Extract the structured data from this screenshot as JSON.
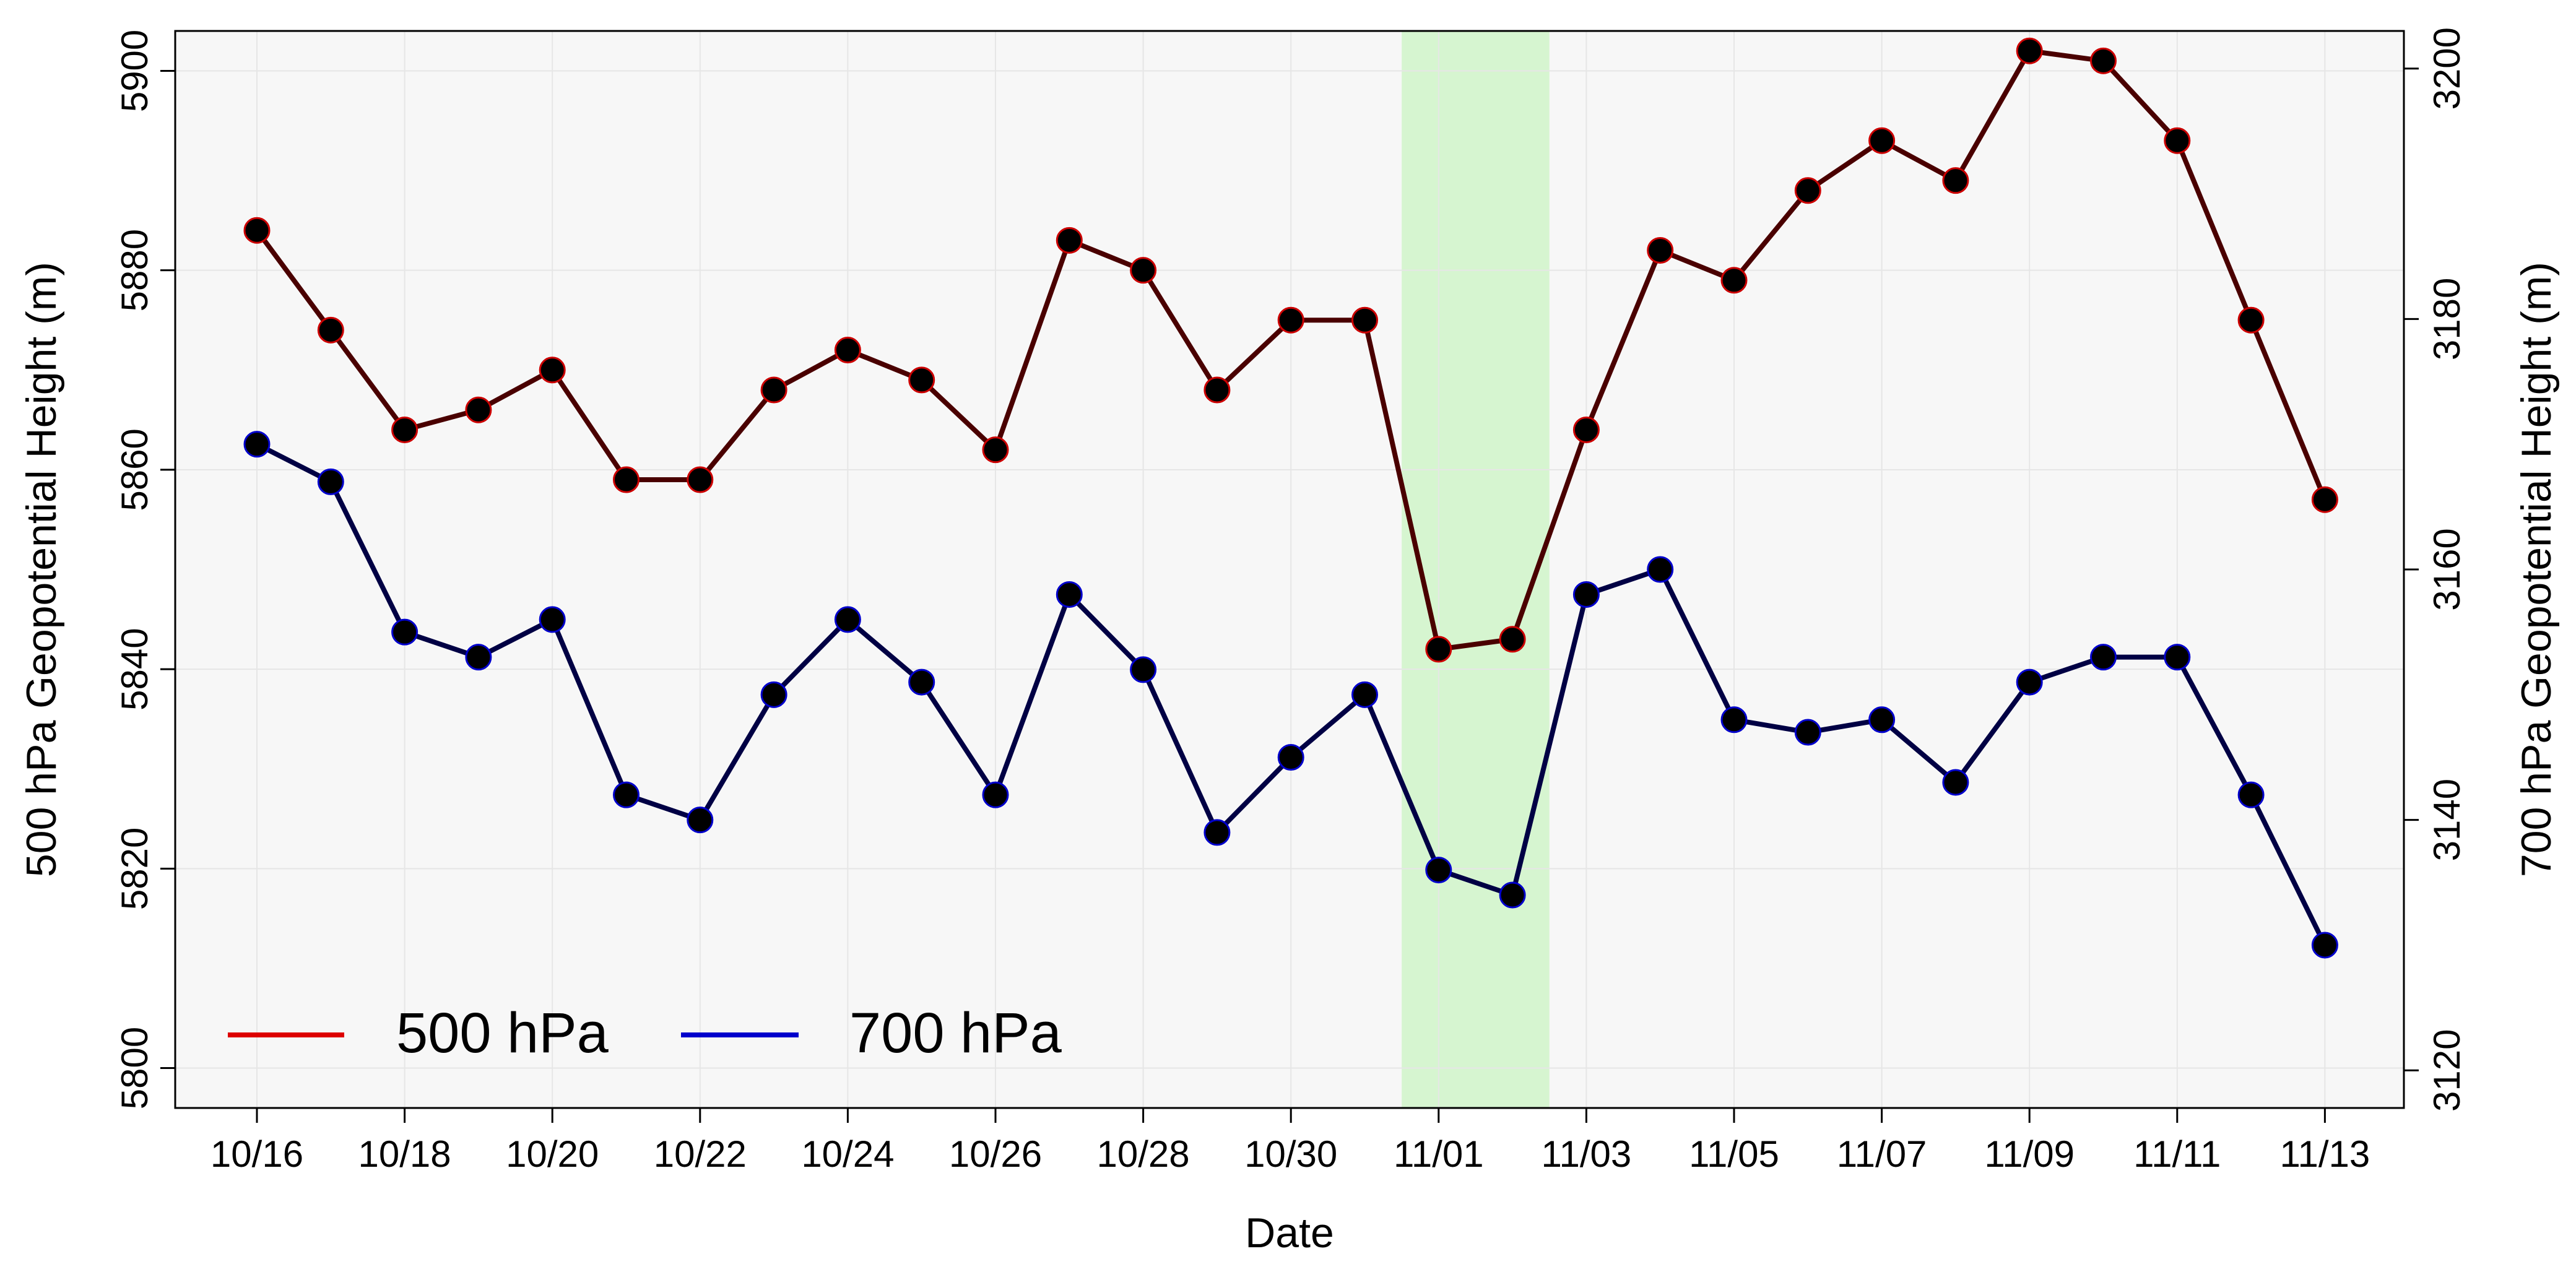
{
  "chart_data": {
    "type": "line",
    "xlabel": "Date",
    "ylabel_left": "500 hPa Geopotential Height (m)",
    "ylabel_right": "700 hPa Geopotential Height (m)",
    "x": [
      "10/16",
      "10/17",
      "10/18",
      "10/19",
      "10/20",
      "10/21",
      "10/22",
      "10/23",
      "10/24",
      "10/25",
      "10/26",
      "10/27",
      "10/28",
      "10/29",
      "10/30",
      "10/31",
      "11/01",
      "11/02",
      "11/03",
      "11/04",
      "11/05",
      "11/06",
      "11/07",
      "11/08",
      "11/09",
      "11/10",
      "11/11",
      "11/12",
      "11/13"
    ],
    "x_tick_labels": [
      "10/16",
      "10/18",
      "10/20",
      "10/22",
      "10/24",
      "10/26",
      "10/28",
      "10/30",
      "11/01",
      "11/03",
      "11/05",
      "11/07",
      "11/09",
      "11/11",
      "11/13"
    ],
    "ylim_left": [
      5796,
      5904
    ],
    "yticks_left": [
      5800,
      5820,
      5840,
      5860,
      5880,
      5900
    ],
    "ylim_right": [
      3117,
      3203
    ],
    "yticks_right": [
      3120,
      3140,
      3160,
      3180,
      3200
    ],
    "highlight_span": [
      "11/01",
      "11/02"
    ],
    "highlight_color": "#d6f5d0",
    "plot_background": "#f7f7f7",
    "grid": true,
    "legend_position": "bottom-left",
    "series": [
      {
        "name": "500 hPa",
        "axis": "left",
        "legend_color": "#dd0000",
        "line_color": "#4a0000",
        "marker_edge": "#cc0000",
        "values": [
          5884,
          5874,
          5864,
          5866,
          5870,
          5859,
          5859,
          5868,
          5872,
          5869,
          5862,
          5883,
          5880,
          5868,
          5875,
          5875,
          5842,
          5843,
          5864,
          5882,
          5879,
          5888,
          5893,
          5889,
          5902,
          5901,
          5893,
          5875,
          5857
        ]
      },
      {
        "name": "700 hPa",
        "axis": "right",
        "legend_color": "#0000cc",
        "line_color": "#000044",
        "marker_edge": "#0000cc",
        "values": [
          3170,
          3167,
          3155,
          3153,
          3156,
          3142,
          3140,
          3150,
          3156,
          3151,
          3142,
          3158,
          3152,
          3139,
          3145,
          3150,
          3136,
          3134,
          3158,
          3160,
          3148,
          3147,
          3148,
          3143,
          3151,
          3153,
          3153,
          3142,
          3130
        ]
      }
    ]
  }
}
